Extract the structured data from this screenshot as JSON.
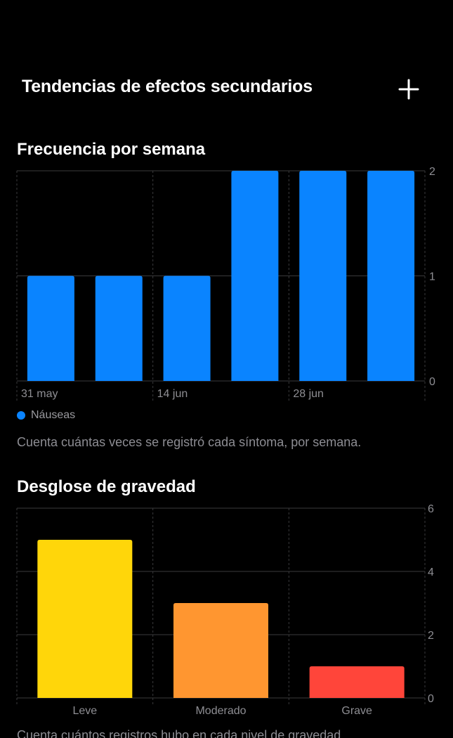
{
  "nav": {
    "title": "Tendencias de efectos secundarios",
    "add_icon": "plus-icon"
  },
  "frequency": {
    "title": "Frecuencia por semana",
    "legend_label": "Náuseas",
    "caption": "Cuenta cuántas veces se registró cada síntoma, por semana."
  },
  "severity": {
    "title": "Desglose de gravedad",
    "caption": "Cuenta cuántos registros hubo en cada nivel de gravedad."
  },
  "colors": {
    "background": "#000000",
    "bar_blue": "#0a84ff",
    "leve": "#ffd60a",
    "moderado": "#ff9630",
    "grave": "#ff453a",
    "grid": "#3a3a3c",
    "tick": "#8e8e93"
  },
  "chart_data": [
    {
      "type": "bar",
      "title": "Frecuencia por semana",
      "x_tick_labels": [
        "31 may",
        "14 jun",
        "28 jun"
      ],
      "series": [
        {
          "name": "Náuseas",
          "values": [
            1,
            1,
            1,
            2,
            2,
            2
          ]
        }
      ],
      "ylim": [
        0,
        2
      ],
      "yticks": [
        0,
        1,
        2
      ],
      "grid": true,
      "legend": "bottom-left"
    },
    {
      "type": "bar",
      "title": "Desglose de gravedad",
      "categories": [
        "Leve",
        "Moderado",
        "Grave"
      ],
      "values": [
        5,
        3,
        1
      ],
      "ylim": [
        0,
        6
      ],
      "yticks": [
        0,
        2,
        4,
        6
      ],
      "grid": true
    }
  ]
}
